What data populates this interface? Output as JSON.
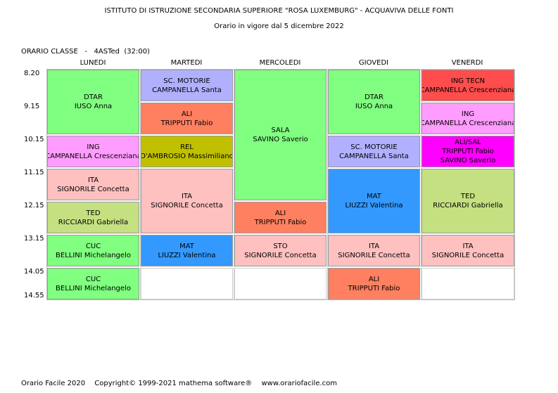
{
  "header": {
    "school": "ISTITUTO DI ISTRUZIONE SECONDARIA SUPERIORE \"ROSA LUXEMBURG\" - ACQUAVIVA DELLE FONTI",
    "validity": "Orario in vigore dal 5 dicembre 2022",
    "class_label": "ORARIO CLASSE   -   4ASTed  (32:00)"
  },
  "days": [
    "LUNEDI",
    "MARTEDI",
    "MERCOLEDI",
    "GIOVEDI",
    "VENERDI"
  ],
  "times": [
    "8.20",
    "9.15",
    "10.15",
    "11.15",
    "12.15",
    "13.15",
    "14.05",
    "14.55"
  ],
  "colors": {
    "green": "#80ff80",
    "lavender": "#b0b0ff",
    "salmon": "#ff8060",
    "red": "#ff4c4c",
    "pink": "#ff9cff",
    "olive": "#c0c000",
    "magenta": "#ff00ff",
    "rose": "#ffc0c0",
    "lightolive": "#c4e080",
    "blue": "#3399ff"
  },
  "schedule": {
    "lunedi": [
      {
        "subject": "DTAR",
        "teacher": "IUSO Anna"
      },
      {
        "subject": "ING",
        "teacher": "CAMPANELLA Crescenziana"
      },
      {
        "subject": "ITA",
        "teacher": "SIGNORILE Concetta"
      },
      {
        "subject": "TED",
        "teacher": "RICCIARDI Gabriella"
      },
      {
        "subject": "CUC",
        "teacher": "BELLINI Michelangelo"
      },
      {
        "subject": "CUC",
        "teacher": "BELLINI Michelangelo"
      }
    ],
    "martedi": [
      {
        "subject": "SC. MOTORIE",
        "teacher": "CAMPANELLA Santa"
      },
      {
        "subject": "ALI",
        "teacher": "TRIPPUTI Fabio"
      },
      {
        "subject": "REL",
        "teacher": "D'AMBROSIO Massimiliano"
      },
      {
        "subject": "ITA",
        "teacher": "SIGNORILE Concetta"
      },
      {
        "subject": "MAT",
        "teacher": "LIUZZI Valentina"
      }
    ],
    "mercoledi": [
      {
        "subject": "SALA",
        "teacher": "SAVINO Saverio"
      },
      {
        "subject": "ALI",
        "teacher": "TRIPPUTI Fabio"
      },
      {
        "subject": "STO",
        "teacher": "SIGNORILE Concetta"
      }
    ],
    "giovedi": [
      {
        "subject": "DTAR",
        "teacher": "IUSO Anna"
      },
      {
        "subject": "SC. MOTORIE",
        "teacher": "CAMPANELLA Santa"
      },
      {
        "subject": "MAT",
        "teacher": "LIUZZI Valentina"
      },
      {
        "subject": "ITA",
        "teacher": "SIGNORILE Concetta"
      },
      {
        "subject": "ALI",
        "teacher": "TRIPPUTI Fabio"
      }
    ],
    "venerdi": [
      {
        "subject": "ING TECN",
        "teacher": "CAMPANELLA Crescenziana"
      },
      {
        "subject": "ING",
        "teacher": "CAMPANELLA Crescenziana"
      },
      {
        "subject": "ALI/SAL",
        "teacher": "TRIPPUTI Fabio",
        "teacher2": "SAVINO Saverio"
      },
      {
        "subject": "TED",
        "teacher": "RICCIARDI Gabriella"
      },
      {
        "subject": "ITA",
        "teacher": "SIGNORILE Concetta"
      }
    ]
  },
  "footer": {
    "app": "Orario Facile 2020",
    "copyright": "Copyright© 1999-2021 mathema software®",
    "site": "www.orariofacile.com"
  }
}
